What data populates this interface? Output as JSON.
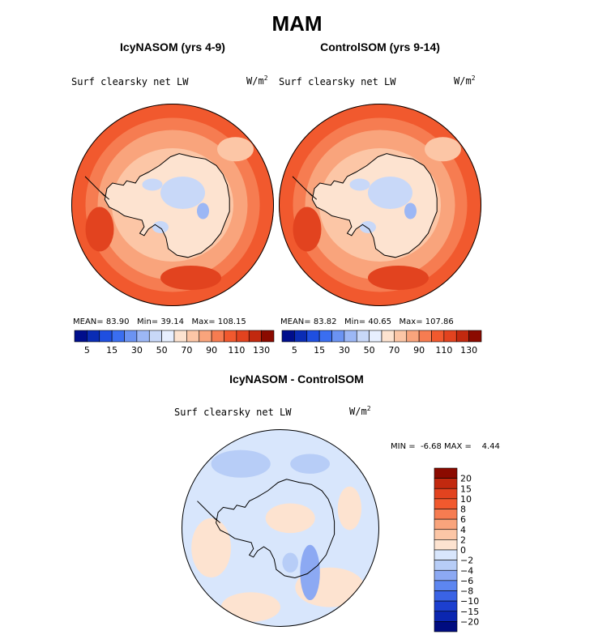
{
  "page": {
    "title": "MAM"
  },
  "chart_data": [
    {
      "type": "heatmap",
      "title": "IcyNASOM (yrs 4-9)",
      "field_label": "Surf clearsky net LW",
      "units_label": "W/m",
      "units_exponent": "2",
      "stats": {
        "mean_label": "MEAN=",
        "mean": "83.90",
        "min_label": "Min=",
        "min": "39.14",
        "max_label": "Max=",
        "max": "108.15"
      },
      "colorbar": {
        "tick_labels": [
          "5",
          "15",
          "30",
          "50",
          "70",
          "90",
          "110",
          "130"
        ],
        "colors": [
          "#000e8c",
          "#0a2cb5",
          "#1f4fe0",
          "#3a6ef0",
          "#6b93f2",
          "#9cb7f5",
          "#c8d8f8",
          "#e7efff",
          "#fde3d0",
          "#fcc6a6",
          "#f9a47c",
          "#f67c51",
          "#f1592e",
          "#e2431f",
          "#c2290f",
          "#8b0a00"
        ]
      }
    },
    {
      "type": "heatmap",
      "title": "ControlSOM (yrs 9-14)",
      "field_label": "Surf clearsky net LW",
      "units_label": "W/m",
      "units_exponent": "2",
      "stats": {
        "mean_label": "MEAN=",
        "mean": "83.82",
        "min_label": "Min=",
        "min": "40.65",
        "max_label": "Max=",
        "max": "107.86"
      },
      "colorbar": {
        "tick_labels": [
          "5",
          "15",
          "30",
          "50",
          "70",
          "90",
          "110",
          "130"
        ],
        "colors": [
          "#000e8c",
          "#0a2cb5",
          "#1f4fe0",
          "#3a6ef0",
          "#6b93f2",
          "#9cb7f5",
          "#c8d8f8",
          "#e7efff",
          "#fde3d0",
          "#fcc6a6",
          "#f9a47c",
          "#f67c51",
          "#f1592e",
          "#e2431f",
          "#c2290f",
          "#8b0a00"
        ]
      }
    },
    {
      "type": "heatmap",
      "title": "IcyNASOM - ControlSOM",
      "field_label": "Surf clearsky net LW",
      "units_label": "W/m",
      "units_exponent": "2",
      "stats": {
        "min_label": "MIN =",
        "min": "-6.68",
        "max_label": "MAX =",
        "max": "4.44"
      },
      "colorbar": {
        "tick_labels": [
          "20",
          "15",
          "10",
          "8",
          "6",
          "4",
          "2",
          "0",
          "−2",
          "−4",
          "−6",
          "−8",
          "−10",
          "−15",
          "−20"
        ],
        "colors": [
          "#8b0a00",
          "#c2290f",
          "#e2431f",
          "#f1592e",
          "#f67c51",
          "#f9a47c",
          "#fcc6a6",
          "#fde3d0",
          "#d8e6fc",
          "#b7cdf7",
          "#8ca9f3",
          "#5d86f0",
          "#3a63e5",
          "#1c3fcf",
          "#0b26b0",
          "#000c80"
        ]
      }
    }
  ]
}
